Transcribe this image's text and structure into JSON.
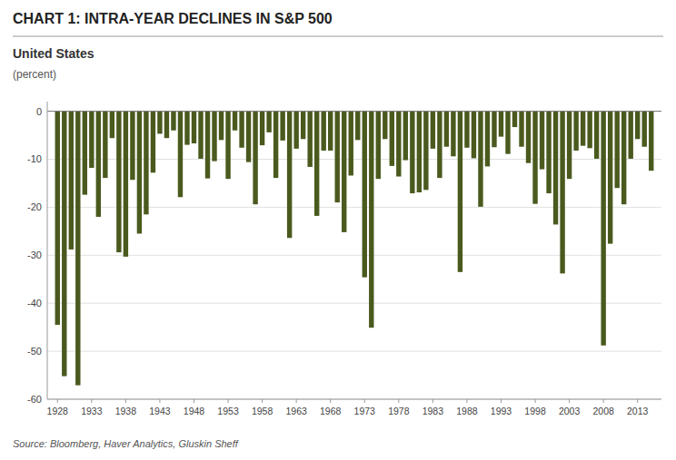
{
  "chart_data": {
    "type": "bar",
    "title": "CHART 1: INTRA-YEAR DECLINES IN S&P 500",
    "subtitle": "United States",
    "ylabel": "(percent)",
    "source": "Source: Bloomberg, Haver Analytics, Gluskin Sheff",
    "color": "#4a5a1e",
    "x": [
      1928,
      1929,
      1930,
      1931,
      1932,
      1933,
      1934,
      1935,
      1936,
      1937,
      1938,
      1939,
      1940,
      1941,
      1942,
      1943,
      1944,
      1945,
      1946,
      1947,
      1948,
      1949,
      1950,
      1951,
      1952,
      1953,
      1954,
      1955,
      1956,
      1957,
      1958,
      1959,
      1960,
      1961,
      1962,
      1963,
      1964,
      1965,
      1966,
      1967,
      1968,
      1969,
      1970,
      1971,
      1972,
      1973,
      1974,
      1975,
      1976,
      1977,
      1978,
      1979,
      1980,
      1981,
      1982,
      1983,
      1984,
      1985,
      1986,
      1987,
      1988,
      1989,
      1990,
      1991,
      1992,
      1993,
      1994,
      1995,
      1996,
      1997,
      1998,
      1999,
      2000,
      2001,
      2002,
      2003,
      2004,
      2005,
      2006,
      2007,
      2008,
      2009,
      2010,
      2011,
      2012,
      2013,
      2014,
      2015
    ],
    "values": [
      -44.5,
      -55.2,
      -28.8,
      -57.1,
      -17.4,
      -11.8,
      -22.0,
      -13.9,
      -5.6,
      -29.4,
      -30.3,
      -14.3,
      -25.5,
      -21.5,
      -12.8,
      -4.7,
      -5.6,
      -4.0,
      -17.9,
      -7.0,
      -6.7,
      -9.9,
      -14.0,
      -10.4,
      -6.0,
      -14.1,
      -4.0,
      -7.6,
      -10.6,
      -19.4,
      -7.1,
      -4.4,
      -13.9,
      -6.1,
      -26.4,
      -7.8,
      -5.8,
      -11.6,
      -21.8,
      -8.2,
      -8.2,
      -19.0,
      -25.2,
      -13.4,
      -6.0,
      -34.6,
      -45.1,
      -14.1,
      -5.8,
      -11.4,
      -13.6,
      -10.2,
      -17.1,
      -16.9,
      -16.4,
      -7.8,
      -13.9,
      -7.4,
      -9.4,
      -33.5,
      -7.6,
      -9.8,
      -19.9,
      -11.5,
      -7.5,
      -5.3,
      -8.9,
      -3.3,
      -7.4,
      -10.8,
      -19.3,
      -12.1,
      -17.1,
      -23.6,
      -33.8,
      -14.1,
      -8.2,
      -7.2,
      -7.7,
      -9.9,
      -48.8,
      -27.6,
      -16.0,
      -19.4,
      -9.9,
      -5.8,
      -7.4,
      -12.4
    ],
    "xlim": [
      1926.5,
      2016.5
    ],
    "xticks": [
      1928,
      1933,
      1938,
      1943,
      1948,
      1953,
      1958,
      1963,
      1968,
      1973,
      1978,
      1983,
      1988,
      1993,
      1998,
      2003,
      2008,
      2013
    ],
    "ylim": [
      -60,
      2
    ],
    "yticks": [
      0,
      -10,
      -20,
      -30,
      -40,
      -50,
      -60
    ],
    "grid": true
  }
}
